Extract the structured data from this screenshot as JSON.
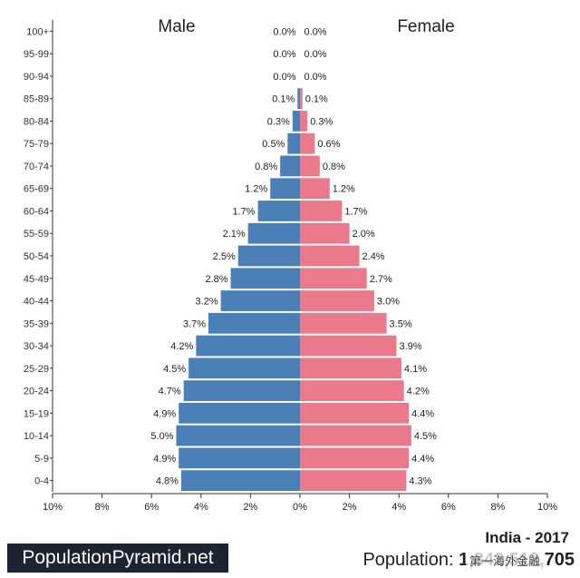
{
  "chart_data": {
    "type": "bar",
    "orientation": "horizontal",
    "layout": "population-pyramid",
    "categories": [
      "100+",
      "95-99",
      "90-94",
      "85-89",
      "80-84",
      "75-79",
      "70-74",
      "65-69",
      "60-64",
      "55-59",
      "50-54",
      "45-49",
      "40-44",
      "35-39",
      "30-34",
      "25-29",
      "20-24",
      "15-19",
      "10-14",
      "5-9",
      "0-4"
    ],
    "series": [
      {
        "name": "Male",
        "color": "#4a7fb8",
        "values": [
          0.0,
          0.0,
          0.0,
          0.1,
          0.3,
          0.5,
          0.8,
          1.2,
          1.7,
          2.1,
          2.5,
          2.8,
          3.2,
          3.7,
          4.2,
          4.5,
          4.7,
          4.9,
          5.0,
          4.9,
          4.8
        ],
        "labels": [
          "0.0%",
          "0.0%",
          "0.0%",
          "0.1%",
          "0.3%",
          "0.5%",
          "0.8%",
          "1.2%",
          "1.7%",
          "2.1%",
          "2.5%",
          "2.8%",
          "3.2%",
          "3.7%",
          "4.2%",
          "4.5%",
          "4.7%",
          "4.9%",
          "5.0%",
          "4.9%",
          "4.8%"
        ]
      },
      {
        "name": "Female",
        "color": "#e9798b",
        "values": [
          0.0,
          0.0,
          0.0,
          0.1,
          0.3,
          0.6,
          0.8,
          1.2,
          1.7,
          2.0,
          2.4,
          2.7,
          3.0,
          3.5,
          3.9,
          4.1,
          4.2,
          4.4,
          4.5,
          4.4,
          4.3
        ],
        "labels": [
          "0.0%",
          "0.0%",
          "0.0%",
          "0.1%",
          "0.3%",
          "0.6%",
          "0.8%",
          "1.2%",
          "1.7%",
          "2.0%",
          "2.4%",
          "2.7%",
          "3.0%",
          "3.5%",
          "3.9%",
          "4.1%",
          "4.2%",
          "4.4%",
          "4.5%",
          "4.4%",
          "4.3%"
        ]
      }
    ],
    "xlim": [
      -10,
      10
    ],
    "xticks": [
      "10%",
      "8%",
      "6%",
      "4%",
      "2%",
      "0%",
      "2%",
      "4%",
      "6%",
      "8%",
      "10%"
    ],
    "grid": false
  },
  "footer": {
    "brand": "PopulationPyramid.net",
    "country_year": "India - 2017",
    "population_label": "Population:",
    "population_value": "1,342,512,705",
    "watermark": "第一海外金融"
  }
}
